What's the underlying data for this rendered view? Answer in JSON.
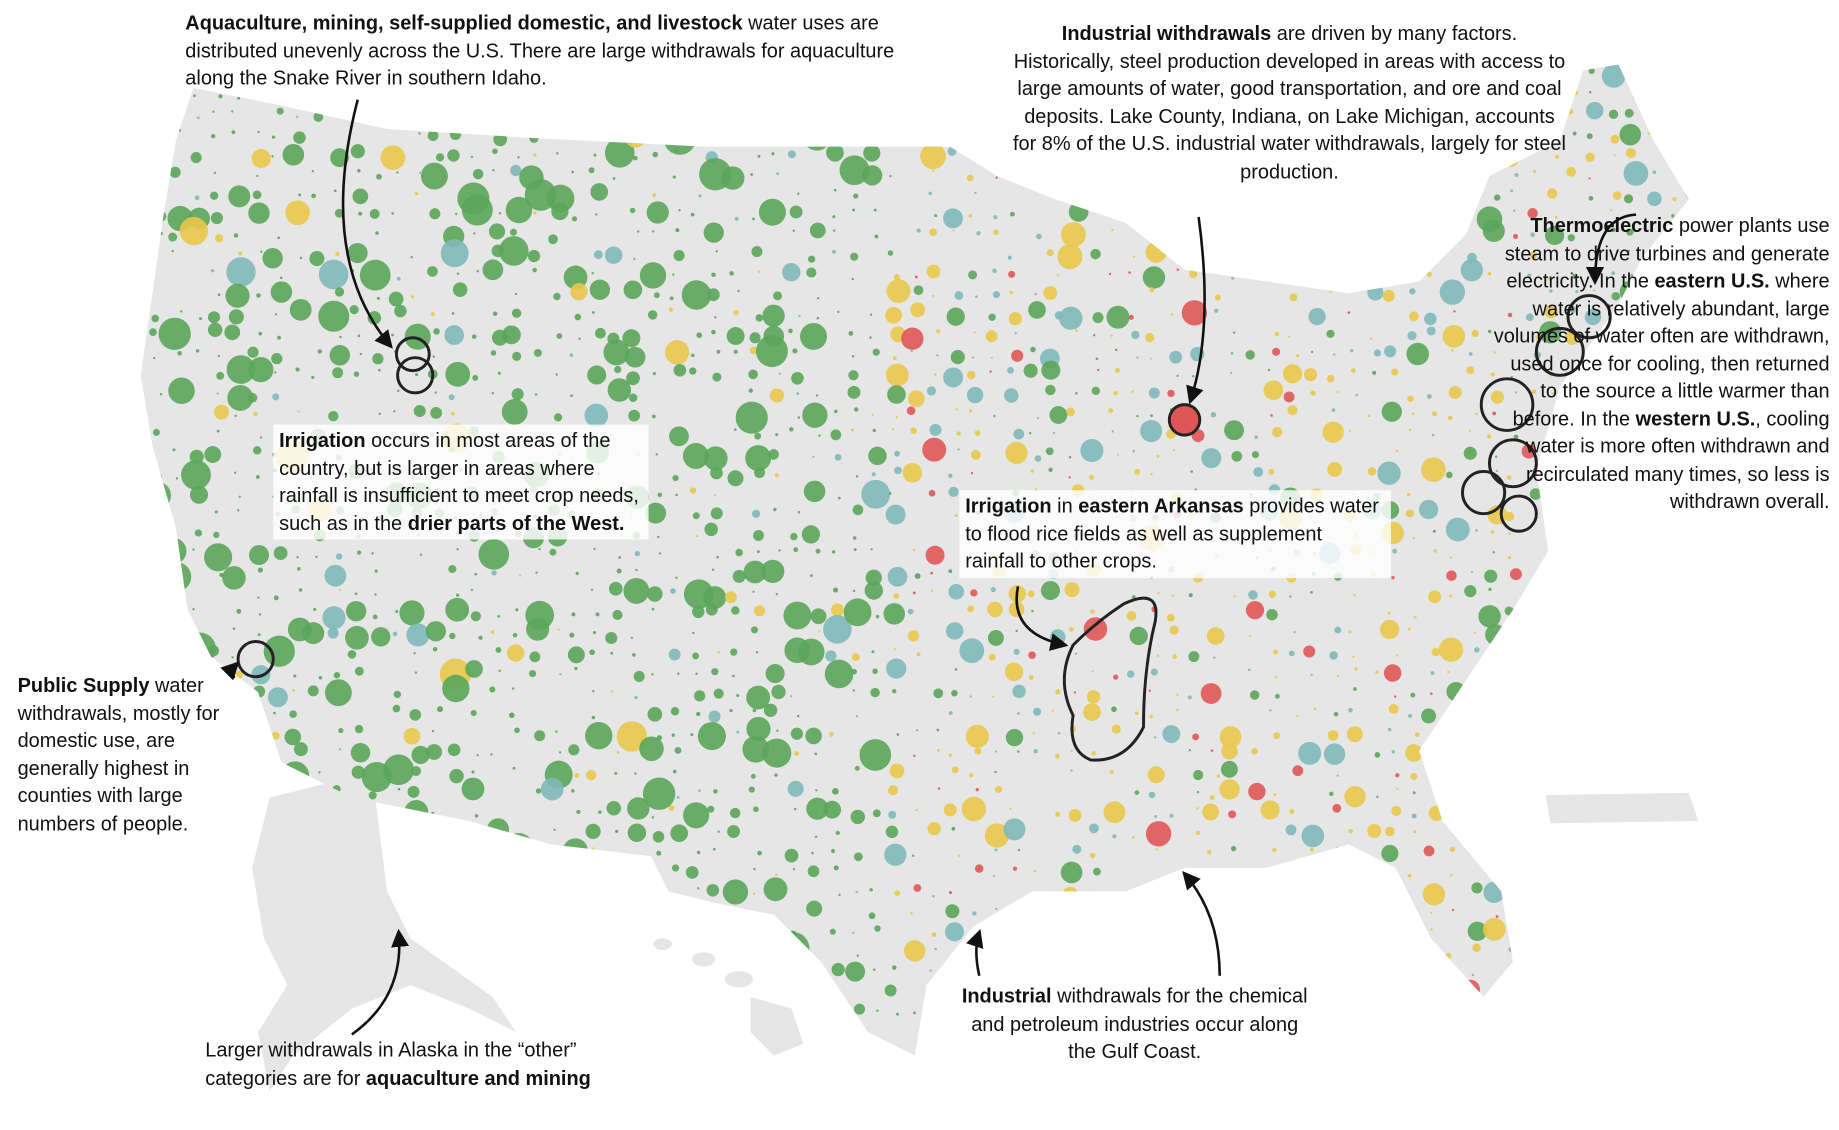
{
  "annotations": [
    {
      "parts": [
        {
          "text": "Aquaculture, mining, self-supplied domestic, and livestock",
          "bold": true
        },
        {
          "text": " water uses are distributed unevenly across the U.S. There are large withdrawals for aquaculture along the Snake River in southern Idaho."
        }
      ]
    },
    {
      "parts": [
        {
          "text": "Industrial withdrawals",
          "bold": true
        },
        {
          "text": " are driven by many factors. Historically, steel production developed in areas with access to large amounts of water, good transportation, and ore and coal deposits. Lake County, Indiana, on Lake Michigan, accounts for 8% of the U.S. industrial water withdrawals, largely for steel production."
        }
      ]
    },
    {
      "parts": [
        {
          "text": "Thermoelectric",
          "bold": true
        },
        {
          "text": " power plants use steam to drive turbines and generate electricity. In the "
        },
        {
          "text": "eastern U.S.",
          "bold": true
        },
        {
          "text": " where water is relatively abundant, large volumes of water often are withdrawn, used once for cooling, then returned to the source a little warmer than before. In the "
        },
        {
          "text": "western U.S.",
          "bold": true
        },
        {
          "text": ", cooling water is more often withdrawn and recirculated many times, so less is withdrawn overall."
        }
      ]
    },
    {
      "parts": [
        {
          "text": "Irrigation",
          "bold": true
        },
        {
          "text": " occurs in most areas of the country, but is larger in areas where rainfall is insufficient to meet crop needs, such as in the "
        },
        {
          "text": "drier parts of the West.",
          "bold": true
        }
      ]
    },
    {
      "parts": [
        {
          "text": "Irrigation",
          "bold": true
        },
        {
          "text": " in "
        },
        {
          "text": "eastern Arkansas",
          "bold": true
        },
        {
          "text": " provides water to flood rice fields as well as supplement rainfall to other crops."
        }
      ]
    },
    {
      "parts": [
        {
          "text": "Public Supply",
          "bold": true
        },
        {
          "text": " water withdrawals, mostly for domestic use, are generally highest in counties with large numbers of people."
        }
      ]
    },
    {
      "parts": [
        {
          "text": "Larger withdrawals in Alaska in the “other” categories are for "
        },
        {
          "text": "aquaculture and mining",
          "bold": true
        }
      ]
    },
    {
      "parts": [
        {
          "text": "Industrial",
          "bold": true
        },
        {
          "text": " withdrawals for the chemical and petroleum industries occur along the Gulf Coast."
        }
      ]
    }
  ]
}
